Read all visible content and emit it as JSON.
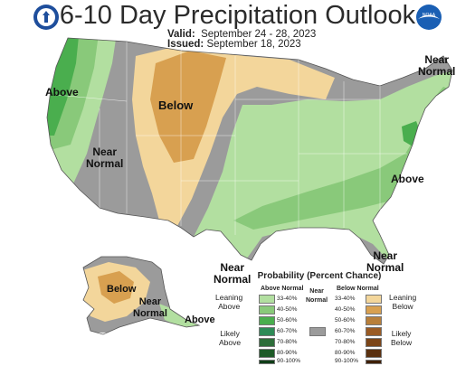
{
  "header": {
    "title": "6-10 Day Precipitation Outlook",
    "valid_label": "Valid:",
    "valid_value": "September 24 - 28, 2023",
    "issued_label": "Issued:",
    "issued_value": "September 18, 2023"
  },
  "logos": {
    "left": "noaa-department-of-commerce-seal",
    "right": "noaa-logo",
    "right_text": "NOAA"
  },
  "map_labels": {
    "west_above": "Above",
    "west_near": "Near\nNormal",
    "north_below": "Below",
    "ne_near": "Near\nNormal",
    "se_above": "Above",
    "south_near": "Near\nNormal",
    "fl_near": "Near\nNormal",
    "ak_below": "Below",
    "ak_near": "Near\nNormal",
    "ak_above": "Above"
  },
  "colors": {
    "above_33": "#b2dfa0",
    "above_40": "#89c97a",
    "above_50": "#4aae4e",
    "above_60": "#2e8b57",
    "above_70": "#2e6e3a",
    "above_80": "#1d5a27",
    "above_90": "#0f3d17",
    "below_33": "#f3d69b",
    "below_40": "#d8a050",
    "below_50": "#b87f3a",
    "below_60": "#9a5b24",
    "below_70": "#7b4518",
    "below_80": "#5a300f",
    "below_90": "#3f1f08",
    "near_normal": "#9b9b9b"
  },
  "legend": {
    "title": "Probability (Percent Chance)",
    "above_head": "Above Normal",
    "below_head": "Below Normal",
    "near_head": "Near\nNormal",
    "leaning_above": "Leaning\nAbove",
    "likely_above": "Likely\nAbove",
    "leaning_below": "Leaning\nBelow",
    "likely_below": "Likely\nBelow",
    "ranges": [
      "33-40%",
      "40-50%",
      "50-60%",
      "60-70%",
      "70-80%",
      "80-90%",
      "90-100%"
    ]
  }
}
